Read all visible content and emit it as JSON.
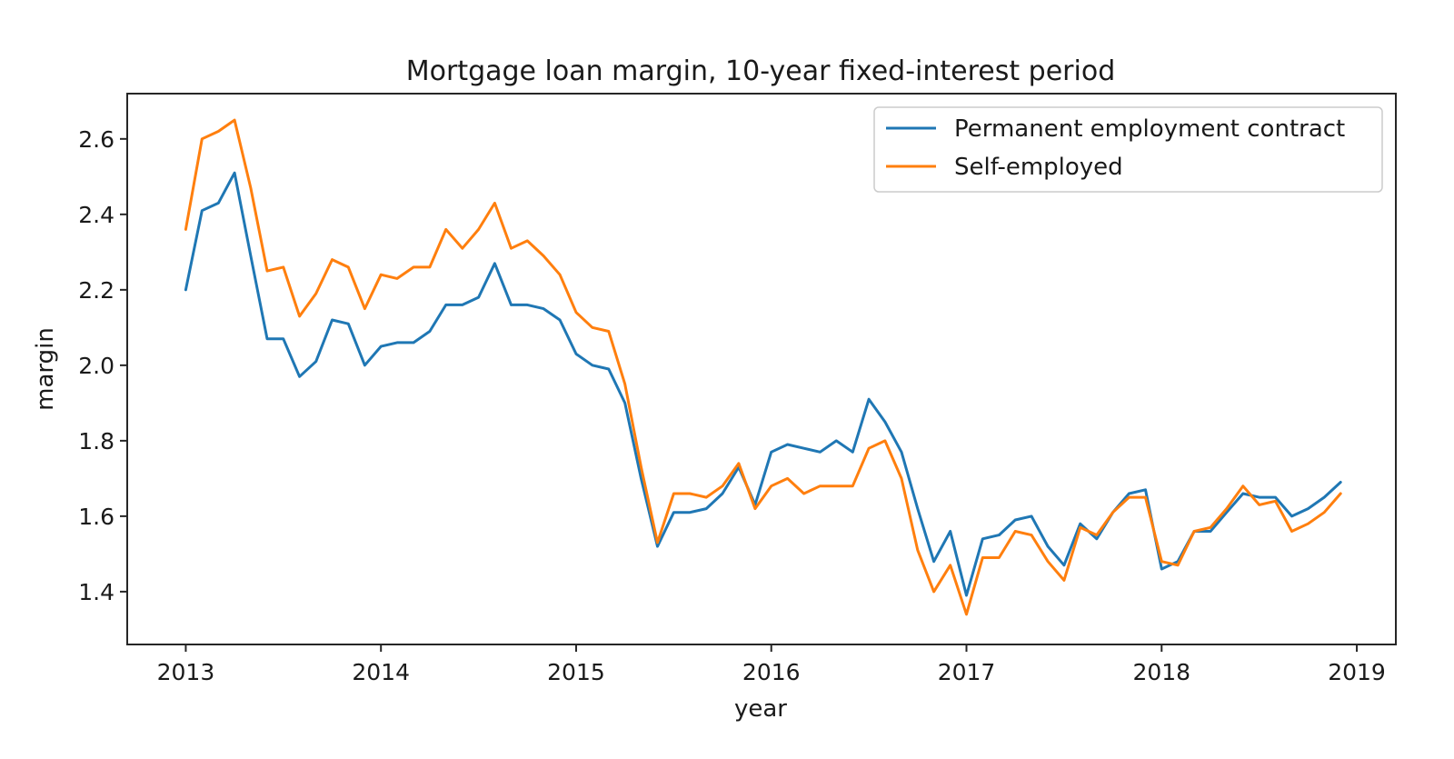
{
  "chart_data": {
    "type": "line",
    "title": "Mortgage loan margin, 10-year fixed-interest period",
    "xlabel": "year",
    "ylabel": "margin",
    "xlim": [
      2012.7,
      2019.2
    ],
    "ylim": [
      1.26,
      2.72
    ],
    "x_ticks": [
      2013,
      2014,
      2015,
      2016,
      2017,
      2018,
      2019
    ],
    "y_ticks": [
      1.4,
      1.6,
      1.8,
      2.0,
      2.2,
      2.4,
      2.6
    ],
    "x_tick_labels": [
      "2013",
      "2014",
      "2015",
      "2016",
      "2017",
      "2018",
      "2019"
    ],
    "y_tick_labels": [
      "1.4",
      "1.6",
      "1.8",
      "2.0",
      "2.2",
      "2.4",
      "2.6"
    ],
    "grid": false,
    "legend_position": "top-right",
    "x": [
      2013.0,
      2013.083,
      2013.167,
      2013.25,
      2013.333,
      2013.417,
      2013.5,
      2013.583,
      2013.667,
      2013.75,
      2013.833,
      2013.917,
      2014.0,
      2014.083,
      2014.167,
      2014.25,
      2014.333,
      2014.417,
      2014.5,
      2014.583,
      2014.667,
      2014.75,
      2014.833,
      2014.917,
      2015.0,
      2015.083,
      2015.167,
      2015.25,
      2015.333,
      2015.417,
      2015.5,
      2015.583,
      2015.667,
      2015.75,
      2015.833,
      2015.917,
      2016.0,
      2016.083,
      2016.167,
      2016.25,
      2016.333,
      2016.417,
      2016.5,
      2016.583,
      2016.667,
      2016.75,
      2016.833,
      2016.917,
      2017.0,
      2017.083,
      2017.167,
      2017.25,
      2017.333,
      2017.417,
      2017.5,
      2017.583,
      2017.667,
      2017.75,
      2017.833,
      2017.917,
      2018.0,
      2018.083,
      2018.167,
      2018.25,
      2018.333,
      2018.417,
      2018.5,
      2018.583,
      2018.667,
      2018.75,
      2018.833,
      2018.917
    ],
    "series": [
      {
        "name": "Permanent employment contract",
        "color": "#1f77b4",
        "values": [
          2.2,
          2.41,
          2.43,
          2.51,
          2.29,
          2.07,
          2.07,
          1.97,
          2.01,
          2.12,
          2.11,
          2.0,
          2.05,
          2.06,
          2.06,
          2.09,
          2.16,
          2.16,
          2.18,
          2.27,
          2.16,
          2.16,
          2.15,
          2.12,
          2.03,
          2.0,
          1.99,
          1.9,
          1.7,
          1.52,
          1.61,
          1.61,
          1.62,
          1.66,
          1.73,
          1.63,
          1.77,
          1.79,
          1.78,
          1.77,
          1.8,
          1.77,
          1.91,
          1.85,
          1.77,
          1.62,
          1.48,
          1.56,
          1.39,
          1.54,
          1.55,
          1.59,
          1.6,
          1.52,
          1.47,
          1.58,
          1.54,
          1.61,
          1.66,
          1.67,
          1.46,
          1.48,
          1.56,
          1.56,
          1.61,
          1.66,
          1.65,
          1.65,
          1.6,
          1.62,
          1.65,
          1.69
        ]
      },
      {
        "name": "Self-employed",
        "color": "#ff7f0e",
        "values": [
          2.36,
          2.6,
          2.62,
          2.65,
          2.47,
          2.25,
          2.26,
          2.13,
          2.19,
          2.28,
          2.26,
          2.15,
          2.24,
          2.23,
          2.26,
          2.26,
          2.36,
          2.31,
          2.36,
          2.43,
          2.31,
          2.33,
          2.29,
          2.24,
          2.14,
          2.1,
          2.09,
          1.95,
          1.73,
          1.53,
          1.66,
          1.66,
          1.65,
          1.68,
          1.74,
          1.62,
          1.68,
          1.7,
          1.66,
          1.68,
          1.68,
          1.68,
          1.78,
          1.8,
          1.7,
          1.51,
          1.4,
          1.47,
          1.34,
          1.49,
          1.49,
          1.56,
          1.55,
          1.48,
          1.43,
          1.57,
          1.55,
          1.61,
          1.65,
          1.65,
          1.48,
          1.47,
          1.56,
          1.57,
          1.62,
          1.68,
          1.63,
          1.64,
          1.56,
          1.58,
          1.61,
          1.66
        ]
      }
    ]
  }
}
